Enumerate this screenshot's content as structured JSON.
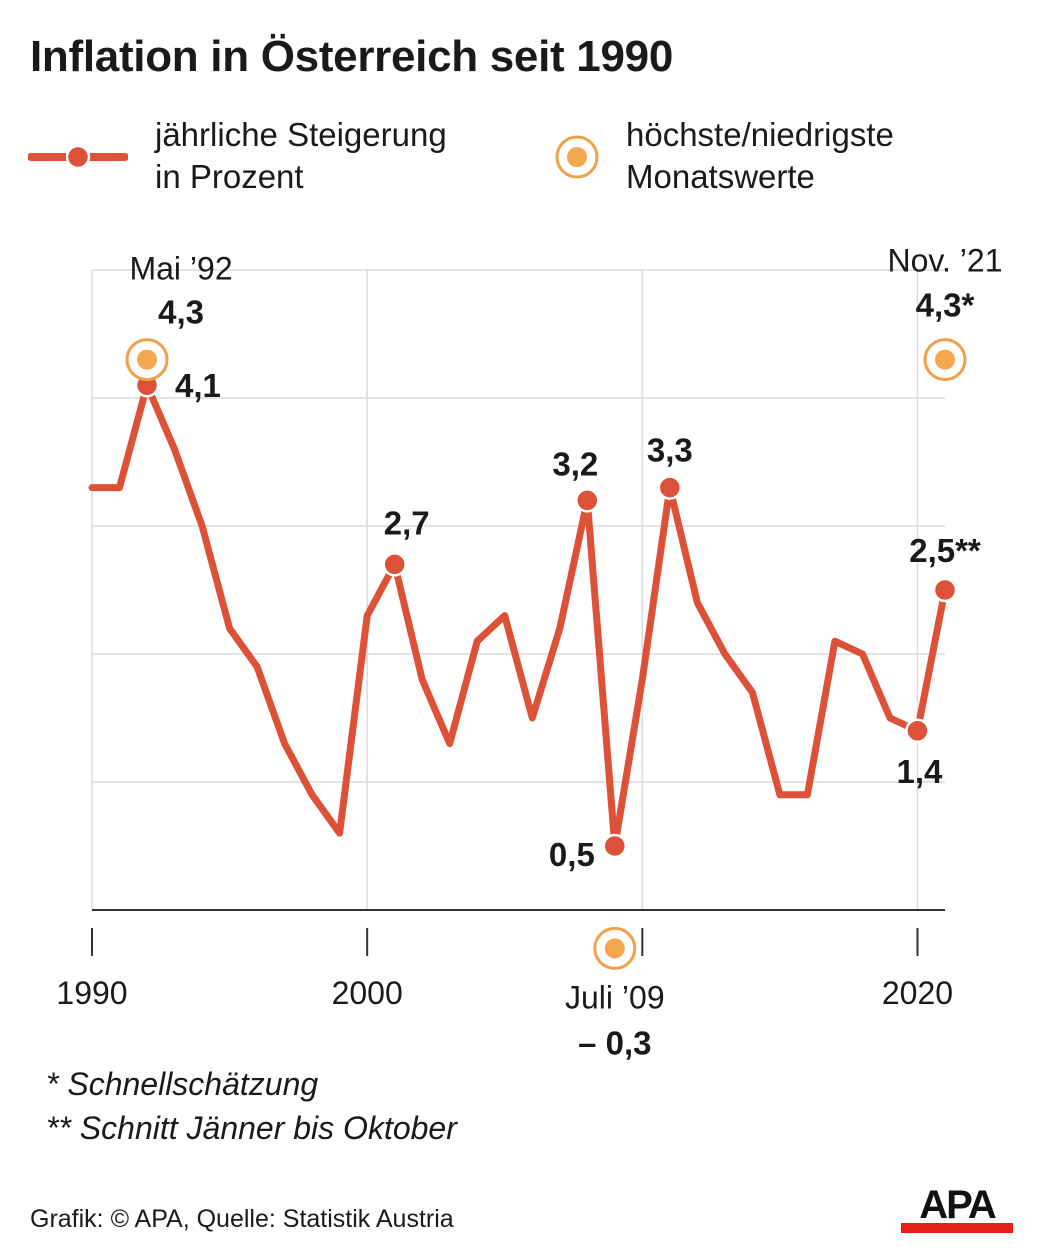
{
  "title": "Inflation in Österreich seit 1990",
  "legend": {
    "line": {
      "line1": "jährliche Steigerung",
      "line2": "in Prozent"
    },
    "ring": {
      "line1": "höchste/niedrigste",
      "line2": "Monatswerte"
    }
  },
  "colors": {
    "line": "#dc5137",
    "ring": "#f0a04b",
    "ring_fill": "#f4a74f",
    "grid": "#dcdcdc",
    "axis": "#333333",
    "text": "#1a1a1a"
  },
  "chart_data": {
    "type": "line",
    "x": [
      1990,
      1991,
      1992,
      1993,
      1994,
      1995,
      1996,
      1997,
      1998,
      1999,
      2000,
      2001,
      2002,
      2003,
      2004,
      2005,
      2006,
      2007,
      2008,
      2009,
      2010,
      2011,
      2012,
      2013,
      2014,
      2015,
      2016,
      2017,
      2018,
      2019,
      2020,
      2021
    ],
    "series": [
      {
        "values": [
          3.3,
          3.3,
          4.1,
          3.6,
          3.0,
          2.2,
          1.9,
          1.3,
          0.9,
          0.6,
          2.3,
          2.7,
          1.8,
          1.3,
          2.1,
          2.3,
          1.5,
          2.2,
          3.2,
          0.5,
          1.8,
          3.3,
          2.4,
          2.0,
          1.7,
          0.9,
          0.9,
          2.1,
          2.0,
          1.5,
          1.4,
          2.5
        ]
      }
    ],
    "ylim": [
      0,
      5
    ],
    "xlim": [
      1990,
      2021
    ],
    "x_ticks": [
      1990,
      2000,
      2020
    ],
    "x_tick_labels": [
      "1990",
      "2000",
      "2020"
    ],
    "grid": true,
    "labeled_points": [
      {
        "x": 1992,
        "y": 4.1,
        "label": "4,1"
      },
      {
        "x": 2001,
        "y": 2.7,
        "label": "2,7"
      },
      {
        "x": 2008,
        "y": 3.2,
        "label": "3,2"
      },
      {
        "x": 2009,
        "y": 0.5,
        "label": "0,5"
      },
      {
        "x": 2011,
        "y": 3.3,
        "label": "3,3"
      },
      {
        "x": 2020,
        "y": 1.4,
        "label": "1,4"
      },
      {
        "x": 2021,
        "y": 2.5,
        "label": "2,5**"
      }
    ],
    "monthly_extremes": [
      {
        "x": 1992,
        "y": 4.3,
        "date": "Mai ’92",
        "label": "4,3"
      },
      {
        "x": 2009,
        "y": -0.3,
        "date": "Juli ’09",
        "label": "– 0,3"
      },
      {
        "x": 2021,
        "y": 4.3,
        "date": "Nov. ’21",
        "label": "4,3*"
      }
    ]
  },
  "footnotes": {
    "note1": "*  Schnellschätzung",
    "note2": "** Schnitt Jänner bis Oktober"
  },
  "credit": "Grafik: © APA, Quelle: Statistik Austria",
  "logo": "APA"
}
